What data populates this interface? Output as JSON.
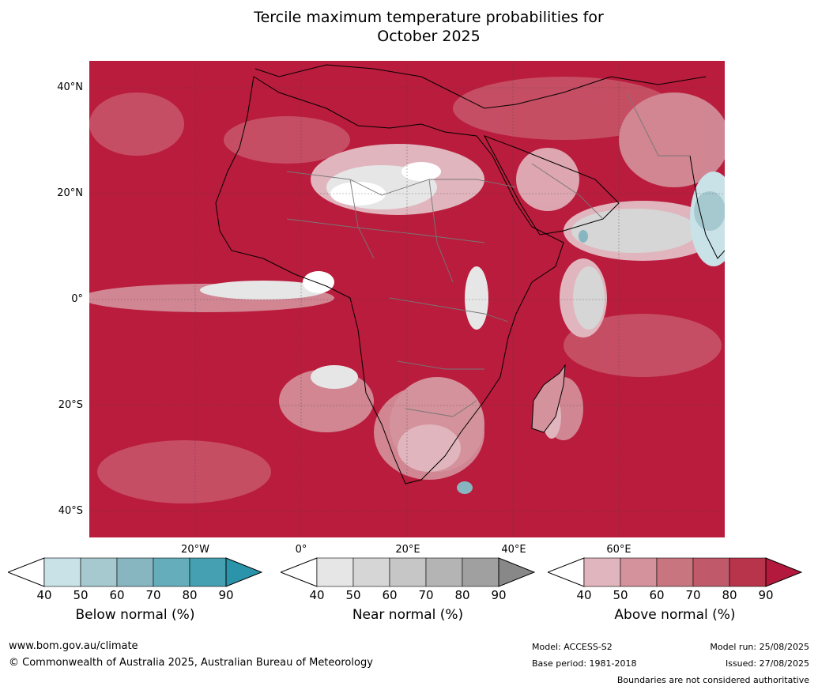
{
  "title_line1": "Tercile maximum temperature probabilities for",
  "title_line2": "October 2025",
  "lat_labels": [
    "40°N",
    "20°N",
    "0°",
    "20°S",
    "40°S"
  ],
  "lon_labels": [
    "20°W",
    "0°",
    "20°E",
    "40°E",
    "60°E"
  ],
  "colorbars": [
    {
      "label": "Below normal (%)",
      "ticks": [
        "40",
        "50",
        "60",
        "70",
        "80",
        "90"
      ],
      "colors": [
        "#c9e2e8",
        "#a6c9d0",
        "#87b6c1",
        "#66adbb",
        "#45a0b2"
      ],
      "over_color": "#2b94aa"
    },
    {
      "label": "Near normal (%)",
      "ticks": [
        "40",
        "50",
        "60",
        "70",
        "80",
        "90"
      ],
      "colors": [
        "#e6e6e6",
        "#d6d6d6",
        "#c6c6c6",
        "#b4b4b4",
        "#a0a0a0"
      ],
      "over_color": "#888888"
    },
    {
      "label": "Above normal (%)",
      "ticks": [
        "40",
        "50",
        "60",
        "70",
        "80",
        "90"
      ],
      "colors": [
        "#e1b5bd",
        "#d4929c",
        "#c87580",
        "#c05a6b",
        "#b8344b"
      ],
      "over_color": "#b2193d"
    }
  ],
  "footer": {
    "website": "www.bom.gov.au/climate",
    "copyright": "© Commonwealth of Australia 2025, Australian Bureau of Meteorology",
    "model": "Model: ACCESS-S2",
    "base_period": "Base period: 1981-2018",
    "model_run": "Model run: 25/08/2025",
    "issued": "Issued: 27/08/2025",
    "boundaries_note": "Boundaries are not considered authoritative"
  }
}
